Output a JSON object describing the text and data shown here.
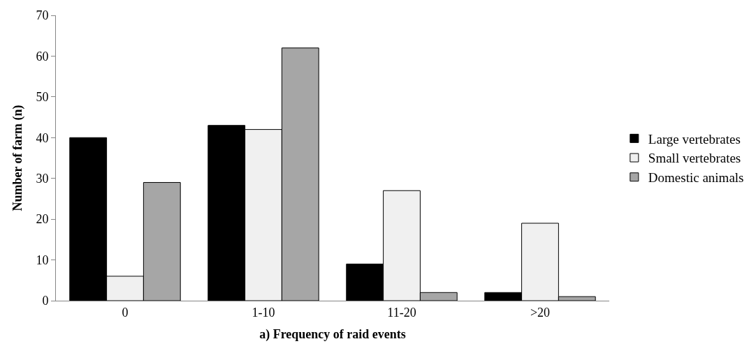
{
  "chart_data": {
    "type": "bar",
    "xlabel": "a) Frequency of raid events",
    "ylabel": "Number of farm (n)",
    "categories": [
      "0",
      "1-10",
      "11-20",
      ">20"
    ],
    "series": [
      {
        "name": "Large vertebrates",
        "color": "#000000",
        "values": [
          40,
          43,
          9,
          2
        ]
      },
      {
        "name": "Small vertebrates",
        "color": "#f0f0f0",
        "values": [
          6,
          42,
          27,
          19
        ]
      },
      {
        "name": "Domestic animals",
        "color": "#a6a6a6",
        "values": [
          29,
          62,
          2,
          1
        ]
      }
    ],
    "ylim": [
      0,
      70
    ],
    "yticks": [
      0,
      10,
      20,
      30,
      40,
      50,
      60,
      70
    ],
    "legend": "right"
  }
}
